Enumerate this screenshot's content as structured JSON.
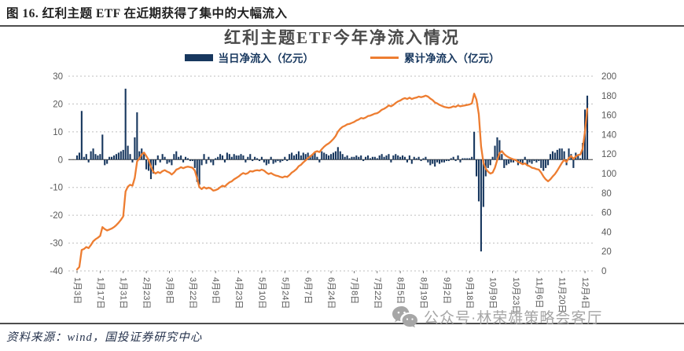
{
  "header": {
    "title": "图 16. 红利主题 ETF 在近期获得了集中的大幅流入"
  },
  "chart": {
    "title": "红利主题ETF今年净流入情况",
    "legend_daily": {
      "label": "当日净流入（亿元）"
    },
    "legend_cumulative": {
      "label": "累计净流入（亿元）"
    }
  },
  "palette": {
    "bar": "#17375E",
    "line": "#ED7D31",
    "grid": "#BFBFBF",
    "zero_axis": "#404040",
    "axis_text": "#595959",
    "watermark": "#A6A6A6"
  },
  "chart_data": {
    "type": "bar",
    "title": "红利主题ETF今年净流入情况",
    "x_tick_labels": [
      "1月3日",
      "1月17日",
      "1月31日",
      "2月23日",
      "3月8日",
      "3月22日",
      "4月9日",
      "4月23日",
      "5月10日",
      "5月24日",
      "6月7日",
      "6月24日",
      "7月8日",
      "7月22日",
      "8月5日",
      "8月19日",
      "9月2日",
      "9月18日",
      "10月9日",
      "10月23日",
      "11月6日",
      "11月20日",
      "12月4日"
    ],
    "x_tick_every": 10,
    "left_axis": {
      "label": "当日净流入（亿元）",
      "min": -40,
      "max": 30,
      "step": 10
    },
    "right_axis": {
      "label": "累计净流入（亿元）",
      "min": 0,
      "max": 200,
      "step": 20
    },
    "grid": "dashed horizontal",
    "legend_position": "top",
    "series": [
      {
        "name": "当日净流入（亿元）",
        "type": "bar",
        "axis": "left",
        "color": "#17375E",
        "values": [
          1.5,
          2.5,
          17.5,
          1,
          2,
          -1,
          3,
          4,
          2,
          1.5,
          2,
          9,
          -2,
          -1.5,
          1,
          1,
          1.5,
          2,
          2.5,
          3,
          3.5,
          25.5,
          5,
          2,
          -1,
          8,
          17,
          3,
          4,
          2,
          -3.5,
          -4,
          -7,
          -5,
          -2,
          1.5,
          -1,
          2,
          1,
          -1.5,
          -1,
          -2,
          2,
          3,
          1,
          1.5,
          -1,
          1,
          0.5,
          -0.5,
          -0.5,
          -3,
          -8,
          -9,
          -2,
          2,
          -1.5,
          1,
          -1,
          -2,
          0.5,
          1,
          2,
          1.5,
          -1,
          2.5,
          2,
          1,
          2,
          1.5,
          1.5,
          2,
          1.5,
          -1,
          1,
          2,
          -0.5,
          1,
          0.5,
          -0.5,
          1,
          -1,
          -2,
          -1.5,
          1,
          -1.5,
          -1,
          -0.5,
          -1,
          -0.5,
          1,
          -0.5,
          2,
          2.5,
          1.5,
          2,
          3,
          1.5,
          2.5,
          2,
          2.5,
          1.5,
          2,
          2.5,
          1,
          -1,
          3,
          2.5,
          2,
          1.5,
          2,
          2.5,
          3,
          4.5,
          3,
          2,
          1,
          1.5,
          0.5,
          1,
          1,
          1.5,
          1,
          1.5,
          -0.5,
          1,
          1.5,
          0.5,
          1,
          1,
          0.5,
          1.5,
          2,
          1,
          1.5,
          2,
          -1,
          1.5,
          2,
          1.5,
          1,
          1.5,
          1,
          -1,
          1.5,
          -1.5,
          1,
          0.5,
          1,
          -0.5,
          0.5,
          1,
          -1,
          -2,
          -1.5,
          -2.5,
          -1,
          -1.5,
          -1,
          -1,
          -0.5,
          -0.5,
          0.5,
          1,
          -0.5,
          1.5,
          -1,
          0.5,
          0.5,
          0.5,
          0.5,
          1,
          10,
          -6,
          -15,
          -33,
          -17,
          -6,
          -3,
          -2,
          1,
          5,
          8,
          7,
          2,
          -3,
          -2,
          -1.5,
          -1,
          -1,
          -0.5,
          -2,
          -1,
          -1.5,
          1,
          -2,
          -1,
          -1.5,
          -0.5,
          -1,
          -0.5,
          -3,
          -4,
          -3,
          -2,
          2,
          3,
          2.5,
          3.5,
          4,
          4,
          3,
          -2,
          4,
          2,
          -3,
          2.5,
          1.5,
          0.5,
          6,
          18,
          23
        ]
      },
      {
        "name": "累计净流入（亿元）",
        "type": "line",
        "axis": "right",
        "color": "#ED7D31",
        "derivation": "cumulative_sum_of_daily_bars",
        "anchor_values": [
          0,
          36,
          56,
          118,
          101,
          106,
          83,
          97,
          104,
          97,
          116,
          133,
          153,
          162,
          175,
          179,
          168,
          171,
          101,
          114,
          104,
          92,
          118,
          166
        ]
      }
    ]
  },
  "watermark": {
    "text": "公众号·林荣雄策略会客厅",
    "icon": "wechat-icon"
  },
  "footer": {
    "source": "资料来源：wind，国投证券研究中心"
  }
}
